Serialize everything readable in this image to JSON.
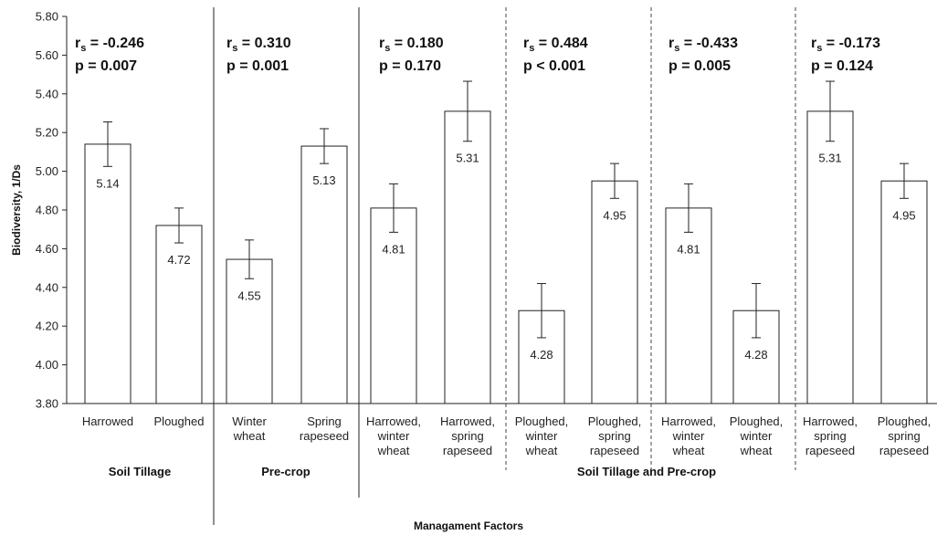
{
  "chart_data": {
    "type": "bar",
    "xlabel": "Managament Factors",
    "ylabel": "Biodiversity, 1/Ds",
    "ylim": [
      3.8,
      5.8
    ],
    "yticks": [
      "3.80",
      "4.00",
      "4.20",
      "4.40",
      "4.60",
      "4.80",
      "5.00",
      "5.20",
      "5.40",
      "5.60",
      "5.80"
    ],
    "error_bars": true,
    "bars": [
      {
        "label": [
          "Harrowed"
        ],
        "value": 5.14,
        "err": 0.115,
        "value_label": "5.14"
      },
      {
        "label": [
          "Ploughed"
        ],
        "value": 4.72,
        "err": 0.09,
        "value_label": "4.72"
      },
      {
        "label": [
          "Winter",
          "wheat"
        ],
        "value": 4.545,
        "err": 0.1,
        "value_label": "4.55"
      },
      {
        "label": [
          "Spring",
          "rapeseed"
        ],
        "value": 5.13,
        "err": 0.09,
        "value_label": "5.13"
      },
      {
        "label": [
          "Harrowed,",
          "winter",
          "wheat"
        ],
        "value": 4.81,
        "err": 0.125,
        "value_label": "4.81"
      },
      {
        "label": [
          "Harrowed,",
          "spring",
          "rapeseed"
        ],
        "value": 5.31,
        "err": 0.155,
        "value_label": "5.31"
      },
      {
        "label": [
          "Ploughed,",
          "winter",
          "wheat"
        ],
        "value": 4.28,
        "err": 0.14,
        "value_label": "4.28"
      },
      {
        "label": [
          "Ploughed,",
          "spring",
          "rapeseed"
        ],
        "value": 4.95,
        "err": 0.09,
        "value_label": "4.95"
      },
      {
        "label": [
          "Harrowed,",
          "winter",
          "wheat"
        ],
        "value": 4.81,
        "err": 0.125,
        "value_label": "4.81"
      },
      {
        "label": [
          "Ploughed,",
          "winter",
          "wheat"
        ],
        "value": 4.28,
        "err": 0.14,
        "value_label": "4.28"
      },
      {
        "label": [
          "Harrowed,",
          "spring",
          "rapeseed"
        ],
        "value": 5.31,
        "err": 0.155,
        "value_label": "5.31"
      },
      {
        "label": [
          "Ploughed,",
          "spring",
          "rapeseed"
        ],
        "value": 4.95,
        "err": 0.09,
        "value_label": "4.95"
      }
    ],
    "annotations": [
      {
        "rs": "-0.246",
        "p": "p = 0.007"
      },
      {
        "rs": "0.310",
        "p": "p = 0.001"
      },
      {
        "rs": "0.180",
        "p": "p = 0.170"
      },
      {
        "rs": "0.484",
        "p": "p < 0.001"
      },
      {
        "rs": "-0.433",
        "p": "p = 0.005"
      },
      {
        "rs": "-0.173",
        "p": "p = 0.124"
      }
    ],
    "groups": [
      "Soil Tillage",
      "Pre-crop",
      "Soil Tillage and Pre-crop"
    ],
    "rs_prefix": "r",
    "rs_subscript": "s",
    "rs_equals": " = ",
    "colors": {
      "bar_fill": "#ffffff",
      "bar_stroke": "#222222",
      "axis": "#222222"
    }
  }
}
